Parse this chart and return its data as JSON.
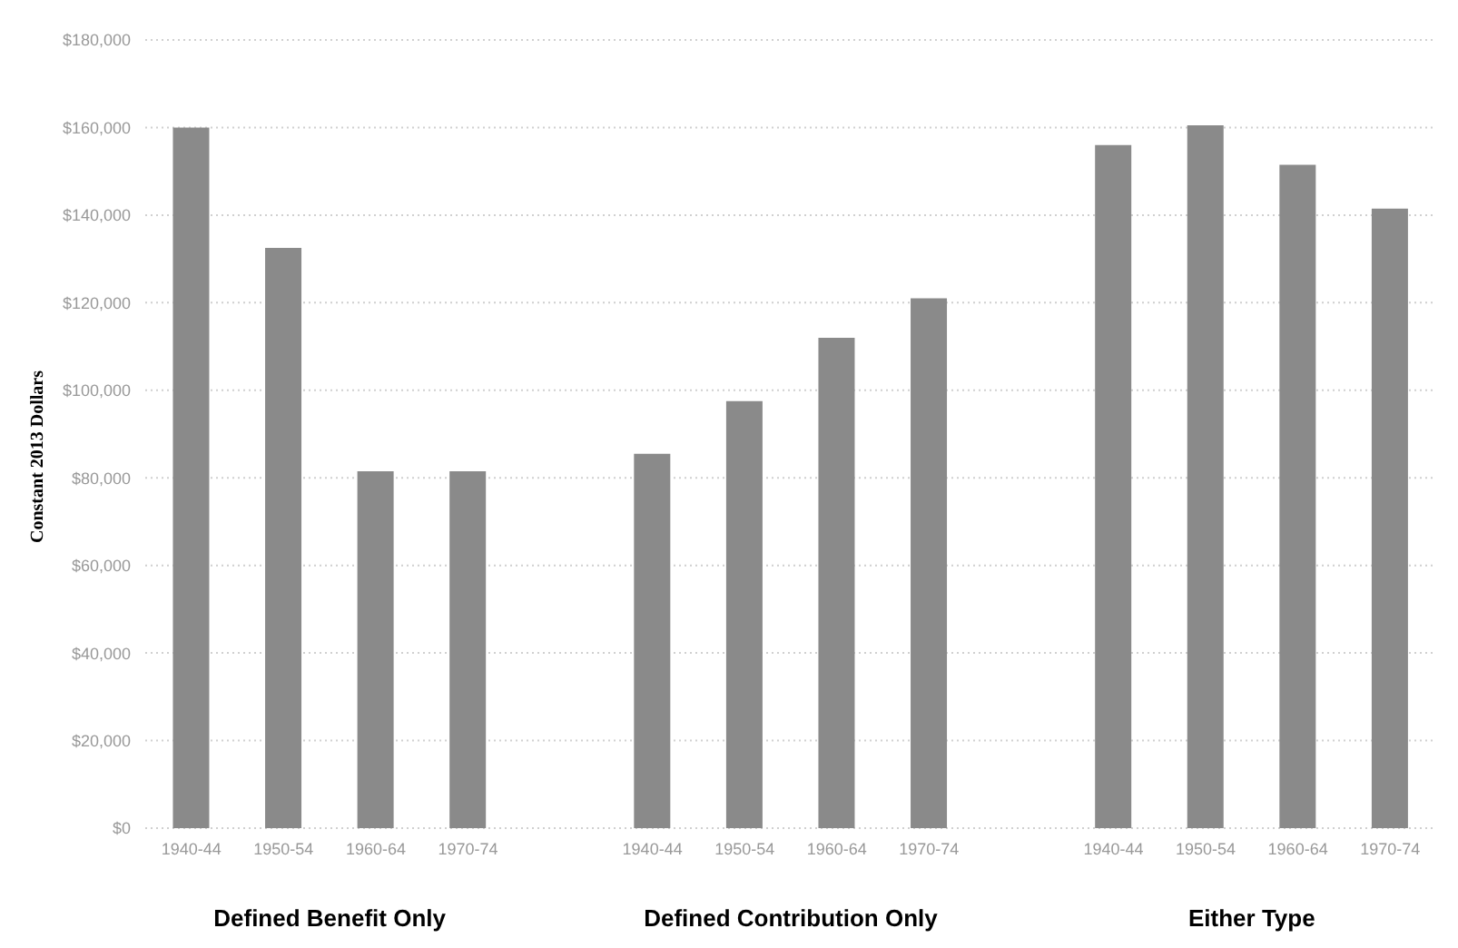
{
  "chart_data": {
    "type": "bar",
    "ylabel": "Constant 2013 Dollars",
    "categories": [
      "1940-44",
      "1950-54",
      "1960-64",
      "1970-74",
      null,
      "1940-44",
      "1950-54",
      "1960-64",
      "1970-74",
      null,
      "1940-44",
      "1950-54",
      "1960-64",
      "1970-74"
    ],
    "series": [
      {
        "color": "#8a8a8a",
        "values": [
          160000,
          132500,
          81500,
          81500,
          null,
          85500,
          97500,
          112000,
          121000,
          null,
          156000,
          160500,
          151500,
          141500
        ]
      }
    ],
    "ylim": [
      0,
      180000
    ],
    "yticks": [
      {
        "value": 0,
        "label": "$0"
      },
      {
        "value": 20000,
        "label": "$20,000"
      },
      {
        "value": 40000,
        "label": "$40,000"
      },
      {
        "value": 60000,
        "label": "$60,000"
      },
      {
        "value": 80000,
        "label": "$80,000"
      },
      {
        "value": 100000,
        "label": "$100,000"
      },
      {
        "value": 120000,
        "label": "$120,000"
      },
      {
        "value": 140000,
        "label": "$140,000"
      },
      {
        "value": 160000,
        "label": "$160,000"
      },
      {
        "value": 180000,
        "label": "$180,000"
      }
    ],
    "grid": "y",
    "annotations": [
      "Defined Benefit Only",
      "Defined Contribution Only",
      "Either Type"
    ]
  }
}
